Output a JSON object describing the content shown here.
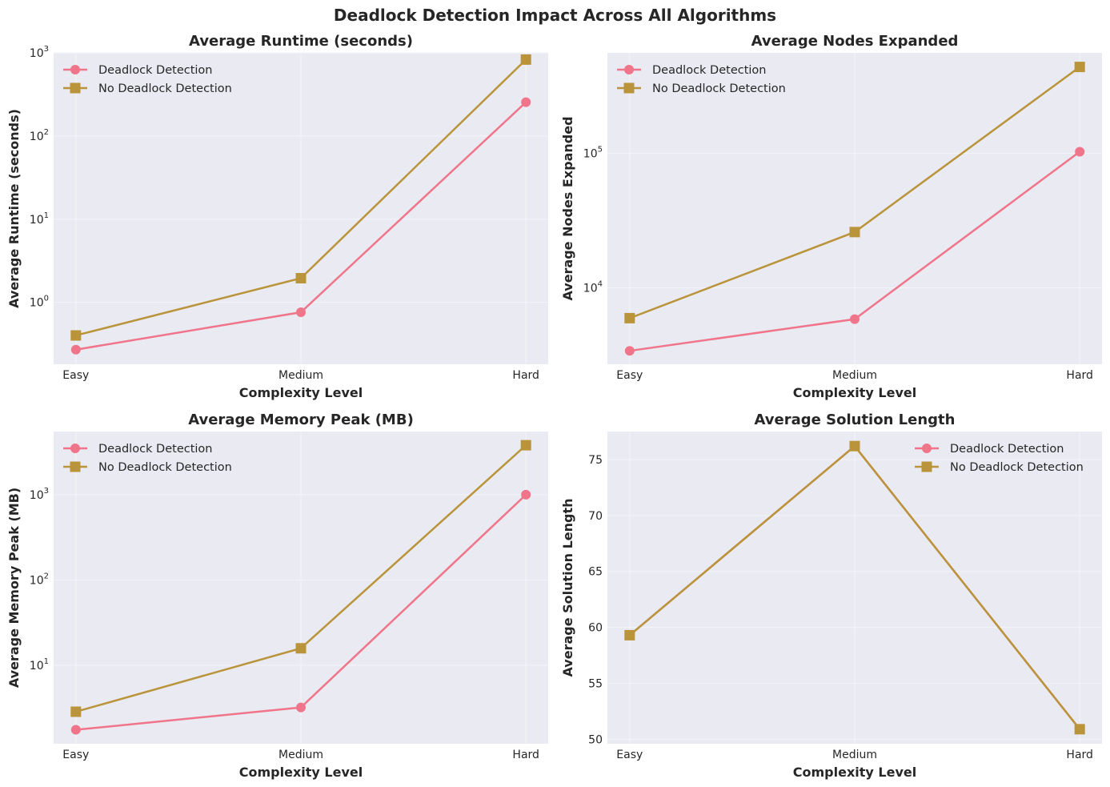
{
  "figure": {
    "title": "Deadlock Detection Impact Across All Algorithms"
  },
  "colors": {
    "background": "#eaeaf2",
    "grid": "#f4f4f8",
    "deadlock": "#f0758a",
    "no_deadlock": "#b9943a"
  },
  "chart_data": [
    {
      "type": "line",
      "title": "Average Runtime (seconds)",
      "xlabel": "Complexity Level",
      "ylabel": "Average Runtime (seconds)",
      "yscale": "log",
      "ylim": [
        0.18,
        1000
      ],
      "categories": [
        "Easy",
        "Medium",
        "Hard"
      ],
      "yticks": [
        {
          "mant": "10",
          "exp": "0",
          "value": 1
        },
        {
          "mant": "10",
          "exp": "1",
          "value": 10
        },
        {
          "mant": "10",
          "exp": "2",
          "value": 100
        },
        {
          "mant": "10",
          "exp": "3",
          "value": 1000
        }
      ],
      "legend_position": "upper-left",
      "series": [
        {
          "name": "Deadlock Detection",
          "marker": "circle",
          "values": [
            0.27,
            0.76,
            255
          ]
        },
        {
          "name": "No Deadlock Detection",
          "marker": "square",
          "values": [
            0.4,
            1.95,
            830
          ]
        }
      ],
      "grid": true
    },
    {
      "type": "line",
      "title": "Average Nodes Expanded",
      "xlabel": "Complexity Level",
      "ylabel": "Average Nodes Expanded",
      "yscale": "log",
      "ylim": [
        2700,
        560000
      ],
      "categories": [
        "Easy",
        "Medium",
        "Hard"
      ],
      "yticks": [
        {
          "mant": "10",
          "exp": "4",
          "value": 10000
        },
        {
          "mant": "10",
          "exp": "5",
          "value": 100000
        }
      ],
      "legend_position": "upper-left",
      "series": [
        {
          "name": "Deadlock Detection",
          "marker": "circle",
          "values": [
            3400,
            5850,
            103000
          ]
        },
        {
          "name": "No Deadlock Detection",
          "marker": "square",
          "values": [
            5950,
            26000,
            440000
          ]
        }
      ],
      "grid": true
    },
    {
      "type": "line",
      "title": "Average Memory Peak (MB)",
      "xlabel": "Complexity Level",
      "ylabel": "Average Memory Peak (MB)",
      "yscale": "log",
      "ylim": [
        1.2,
        5500
      ],
      "categories": [
        "Easy",
        "Medium",
        "Hard"
      ],
      "yticks": [
        {
          "mant": "10",
          "exp": "1",
          "value": 10
        },
        {
          "mant": "10",
          "exp": "2",
          "value": 100
        },
        {
          "mant": "10",
          "exp": "3",
          "value": 1000
        }
      ],
      "legend_position": "upper-left",
      "series": [
        {
          "name": "Deadlock Detection",
          "marker": "circle",
          "values": [
            1.75,
            3.2,
            1000
          ]
        },
        {
          "name": "No Deadlock Detection",
          "marker": "square",
          "values": [
            2.85,
            15.8,
            3800
          ]
        }
      ],
      "grid": true
    },
    {
      "type": "line",
      "title": "Average Solution Length",
      "xlabel": "Complexity Level",
      "ylabel": "Average Solution Length",
      "yscale": "linear",
      "ylim": [
        49.6,
        77.5
      ],
      "categories": [
        "Easy",
        "Medium",
        "Hard"
      ],
      "yticks": [
        {
          "label": "50",
          "value": 50
        },
        {
          "label": "55",
          "value": 55
        },
        {
          "label": "60",
          "value": 60
        },
        {
          "label": "65",
          "value": 65
        },
        {
          "label": "70",
          "value": 70
        },
        {
          "label": "75",
          "value": 75
        }
      ],
      "legend_position": "upper-right",
      "series": [
        {
          "name": "Deadlock Detection",
          "marker": "circle",
          "values": [
            59.3,
            76.2,
            50.9
          ]
        },
        {
          "name": "No Deadlock Detection",
          "marker": "square",
          "values": [
            59.3,
            76.2,
            50.9
          ]
        }
      ],
      "grid": true
    }
  ]
}
